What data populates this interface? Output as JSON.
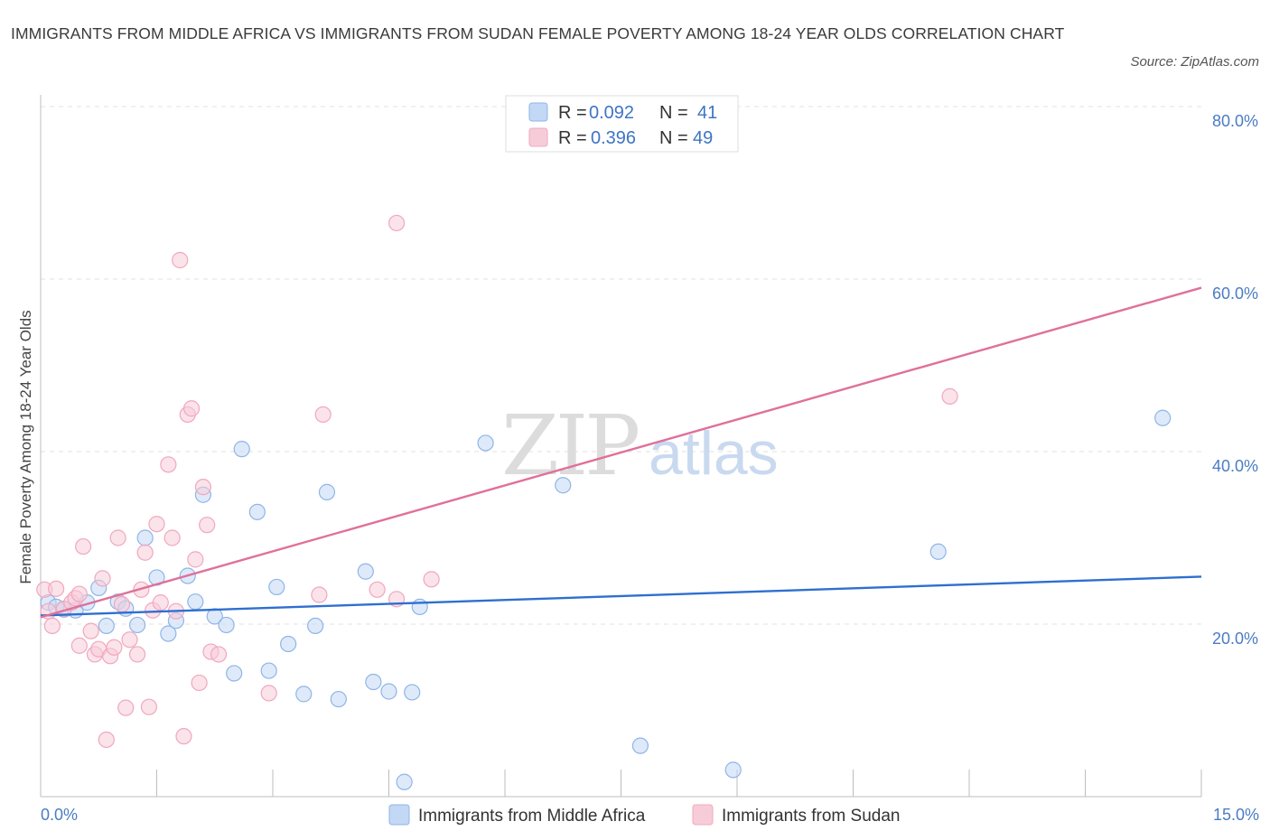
{
  "header": {
    "title": "IMMIGRANTS FROM MIDDLE AFRICA VS IMMIGRANTS FROM SUDAN FEMALE POVERTY AMONG 18-24 YEAR OLDS CORRELATION CHART",
    "source": "Source: ZipAtlas.com"
  },
  "watermark": {
    "zip": "ZIP",
    "atlas": "atlas"
  },
  "chart_data": {
    "type": "scatter",
    "title": "IMMIGRANTS FROM MIDDLE AFRICA VS IMMIGRANTS FROM SUDAN FEMALE POVERTY AMONG 18-24 YEAR OLDS CORRELATION CHART",
    "xlabel": "",
    "ylabel": "Female Poverty Among 18-24 Year Olds",
    "xlim": [
      0,
      15
    ],
    "ylim": [
      0,
      80
    ],
    "x_tick_labels": [
      "0.0%",
      "15.0%"
    ],
    "y_ticks": [
      20,
      40,
      60,
      80
    ],
    "y_tick_labels": [
      "20.0%",
      "40.0%",
      "60.0%",
      "80.0%"
    ],
    "grid": true,
    "legend_top": {
      "r_label": "R =",
      "n_label": "N =",
      "entries": [
        {
          "r": "0.092",
          "n": "41"
        },
        {
          "r": "0.396",
          "n": "49"
        }
      ]
    },
    "series": [
      {
        "name": "Immigrants from Middle Africa",
        "color": "#8fb5e8",
        "fill": "#c3d8f4",
        "line_color": "#2e6fd0",
        "trend": {
          "x0": 0,
          "y0": 21.0,
          "x1": 15,
          "y1": 25.5
        },
        "points": [
          [
            0.1,
            22.5
          ],
          [
            0.2,
            22.0
          ],
          [
            0.3,
            21.7
          ],
          [
            0.45,
            21.6
          ],
          [
            0.6,
            22.5
          ],
          [
            0.75,
            24.2
          ],
          [
            0.85,
            19.8
          ],
          [
            1.0,
            22.6
          ],
          [
            1.1,
            21.8
          ],
          [
            1.25,
            19.9
          ],
          [
            1.35,
            30.0
          ],
          [
            1.5,
            25.4
          ],
          [
            1.65,
            18.9
          ],
          [
            1.75,
            20.4
          ],
          [
            1.9,
            25.6
          ],
          [
            2.0,
            22.6
          ],
          [
            2.1,
            35.0
          ],
          [
            2.25,
            20.9
          ],
          [
            2.4,
            19.9
          ],
          [
            2.5,
            14.3
          ],
          [
            2.6,
            40.3
          ],
          [
            2.8,
            33.0
          ],
          [
            2.95,
            14.6
          ],
          [
            3.05,
            24.3
          ],
          [
            3.2,
            17.7
          ],
          [
            3.4,
            11.9
          ],
          [
            3.55,
            19.8
          ],
          [
            3.7,
            35.3
          ],
          [
            3.85,
            11.3
          ],
          [
            4.2,
            26.1
          ],
          [
            4.3,
            13.3
          ],
          [
            4.5,
            12.2
          ],
          [
            4.7,
            1.7
          ],
          [
            4.8,
            12.1
          ],
          [
            4.9,
            22.0
          ],
          [
            5.75,
            41.0
          ],
          [
            6.75,
            36.1
          ],
          [
            7.75,
            5.9
          ],
          [
            8.95,
            3.1
          ],
          [
            11.6,
            28.4
          ],
          [
            14.5,
            43.9
          ]
        ]
      },
      {
        "name": "Immigrants from Sudan",
        "color": "#f0a7c0",
        "fill": "#f7ccd9",
        "line_color": "#e0709a",
        "trend": {
          "x0": 0,
          "y0": 20.8,
          "x1": 15,
          "y1": 59.0
        },
        "points": [
          [
            0.05,
            24.0
          ],
          [
            0.1,
            21.5
          ],
          [
            0.15,
            19.8
          ],
          [
            0.2,
            24.1
          ],
          [
            0.3,
            21.8
          ],
          [
            0.4,
            22.5
          ],
          [
            0.45,
            23.0
          ],
          [
            0.5,
            23.5
          ],
          [
            0.5,
            17.5
          ],
          [
            0.55,
            29.0
          ],
          [
            0.65,
            19.2
          ],
          [
            0.7,
            16.5
          ],
          [
            0.75,
            17.1
          ],
          [
            0.8,
            25.3
          ],
          [
            0.85,
            6.6
          ],
          [
            0.9,
            16.3
          ],
          [
            0.95,
            17.3
          ],
          [
            1.0,
            30.0
          ],
          [
            1.05,
            22.3
          ],
          [
            1.1,
            10.3
          ],
          [
            1.15,
            18.2
          ],
          [
            1.25,
            16.5
          ],
          [
            1.3,
            24.0
          ],
          [
            1.35,
            28.3
          ],
          [
            1.4,
            10.4
          ],
          [
            1.45,
            21.6
          ],
          [
            1.5,
            31.6
          ],
          [
            1.55,
            22.5
          ],
          [
            1.65,
            38.5
          ],
          [
            1.7,
            30.0
          ],
          [
            1.75,
            21.5
          ],
          [
            1.8,
            62.2
          ],
          [
            1.85,
            7.0
          ],
          [
            1.9,
            44.3
          ],
          [
            1.95,
            45.0
          ],
          [
            2.0,
            27.5
          ],
          [
            2.05,
            13.2
          ],
          [
            2.1,
            35.9
          ],
          [
            2.15,
            31.5
          ],
          [
            2.2,
            16.8
          ],
          [
            2.3,
            16.5
          ],
          [
            2.95,
            12.0
          ],
          [
            3.6,
            23.4
          ],
          [
            3.65,
            44.3
          ],
          [
            4.35,
            24.0
          ],
          [
            4.6,
            22.9
          ],
          [
            4.6,
            66.5
          ],
          [
            5.05,
            25.2
          ],
          [
            11.75,
            46.4
          ]
        ]
      }
    ]
  },
  "legend_bottom": {
    "items": [
      {
        "label": "Immigrants from Middle Africa"
      },
      {
        "label": "Immigrants from Sudan"
      }
    ]
  }
}
